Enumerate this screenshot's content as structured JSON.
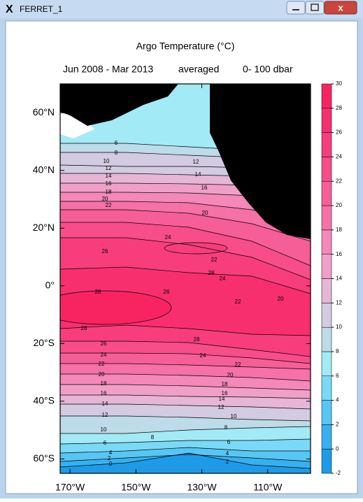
{
  "window": {
    "title": "FERRET_1"
  },
  "plot": {
    "title": "Argo Temperature (°C)",
    "time_range": "Jun 2008 - Mar 2013",
    "averaged": "averaged",
    "depth_range": "0- 100 dbar",
    "xlim": [
      -173,
      -97
    ],
    "ylim": [
      -65,
      70
    ],
    "xticks": [
      {
        "value": -170,
        "label": "170°W"
      },
      {
        "value": -150,
        "label": "150°W"
      },
      {
        "value": -130,
        "label": "130°W"
      },
      {
        "value": -110,
        "label": "110°W"
      }
    ],
    "yticks": [
      {
        "value": 60,
        "label": "60°N"
      },
      {
        "value": 40,
        "label": "40°N"
      },
      {
        "value": 20,
        "label": "20°N"
      },
      {
        "value": 0,
        "label": "0°"
      },
      {
        "value": -20,
        "label": "20°S"
      },
      {
        "value": -40,
        "label": "40°S"
      },
      {
        "value": -60,
        "label": "60°S"
      }
    ],
    "colorbar": {
      "levels": [
        -2,
        0,
        2,
        4,
        6,
        8,
        10,
        12,
        14,
        16,
        18,
        20,
        22,
        24,
        26,
        28,
        30
      ],
      "colors": [
        "#1e9be8",
        "#38b0f0",
        "#58c6f4",
        "#7ad9f6",
        "#a2eaf6",
        "#bddbe8",
        "#d2cbe2",
        "#e6b6d6",
        "#f0a0c8",
        "#f488b8",
        "#f571a6",
        "#f65e97",
        "#f74d89",
        "#f83d7c",
        "#f82f6f",
        "#f82461"
      ]
    },
    "contour_labels": [
      6,
      8,
      10,
      12,
      14,
      16,
      18,
      20,
      22,
      26,
      28,
      28,
      26,
      24,
      22,
      20,
      18,
      16,
      14,
      12,
      10,
      6,
      4,
      2,
      0,
      12,
      14,
      16,
      20,
      24,
      22,
      28,
      24,
      26,
      22,
      20,
      28,
      24,
      22,
      20,
      18,
      16,
      14,
      12,
      10,
      8,
      8,
      6,
      4,
      2
    ]
  }
}
